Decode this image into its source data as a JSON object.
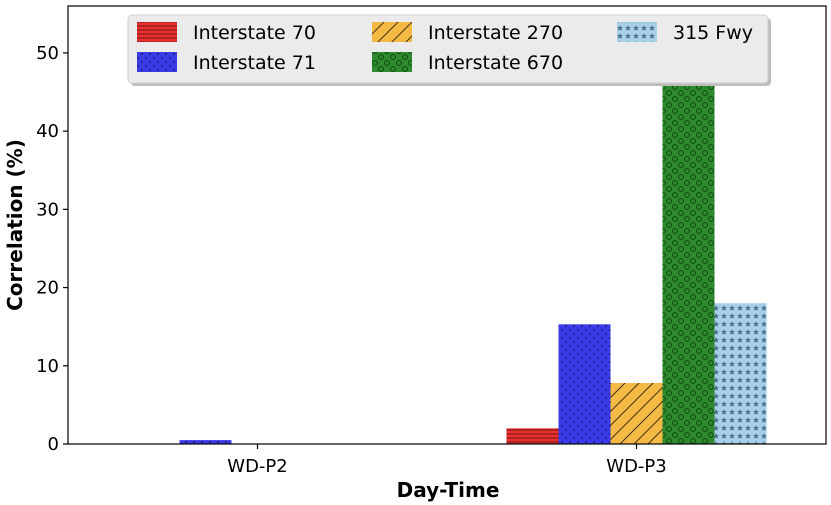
{
  "chart_data": {
    "type": "bar",
    "categories": [
      "WD-P2",
      "WD-P3"
    ],
    "xlabel": "Day-Time",
    "ylabel": "Correlation (%)",
    "ylim": [
      0,
      56
    ],
    "yticks": [
      0,
      10,
      20,
      30,
      40,
      50
    ],
    "grid": false,
    "legend": {
      "placement": "top-center",
      "columns": 3
    },
    "series": [
      {
        "name": "Interstate 70",
        "values": [
          0,
          2.0
        ],
        "color": "#e8312f",
        "pattern": "horizontal-lines"
      },
      {
        "name": "Interstate 71",
        "values": [
          0.5,
          15.3
        ],
        "color": "#3a3ae8",
        "pattern": "dots"
      },
      {
        "name": "Interstate 270",
        "values": [
          0,
          7.8
        ],
        "color": "#f5b945",
        "pattern": "diagonal-hatch"
      },
      {
        "name": "Interstate 670",
        "values": [
          0,
          46.0
        ],
        "color": "#2e8b2e",
        "pattern": "circles"
      },
      {
        "name": "315 Fwy",
        "values": [
          0,
          18.0
        ],
        "color": "#a6cfe9",
        "pattern": "stars"
      }
    ]
  }
}
